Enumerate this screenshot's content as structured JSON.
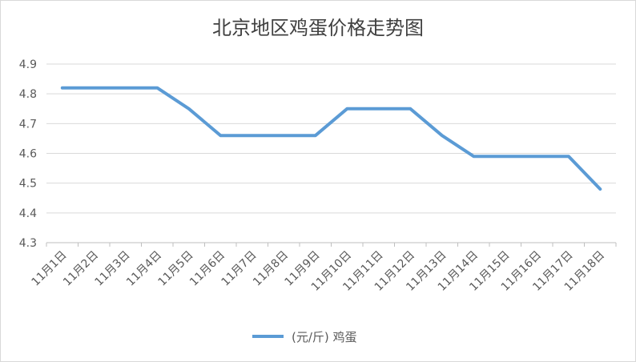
{
  "chart_data": {
    "type": "line",
    "title": "北京地区鸡蛋价格走势图",
    "xlabel": "",
    "ylabel": "",
    "categories": [
      "11月1日",
      "11月2日",
      "11月3日",
      "11月4日",
      "11月5日",
      "11月6日",
      "11月7日",
      "11月8日",
      "11月9日",
      "11月10日",
      "11月11日",
      "11月12日",
      "11月13日",
      "11月14日",
      "11月15日",
      "11月16日",
      "11月17日",
      "11月18日"
    ],
    "series": [
      {
        "name": "(元/斤) 鸡蛋",
        "values": [
          4.82,
          4.82,
          4.82,
          4.82,
          4.75,
          4.66,
          4.66,
          4.66,
          4.66,
          4.75,
          4.75,
          4.75,
          4.66,
          4.59,
          4.59,
          4.59,
          4.59,
          4.48
        ],
        "color": "#5b9bd5"
      }
    ],
    "ylim": [
      4.3,
      4.9
    ],
    "yticks": [
      "4.3",
      "4.4",
      "4.5",
      "4.6",
      "4.7",
      "4.8",
      "4.9"
    ],
    "grid": true,
    "legend": "bottom-center"
  }
}
